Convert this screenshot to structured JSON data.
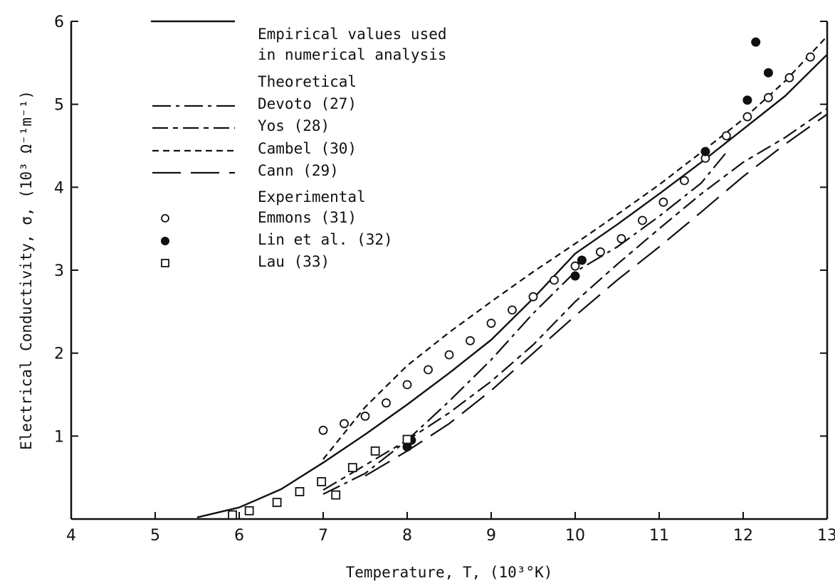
{
  "chart_data": {
    "type": "line",
    "xlabel": "Temperature, T, (10³°K)",
    "ylabel": "Electrical Conductivity, σ, (10³ Ω⁻¹m⁻¹)",
    "xlim": [
      4,
      13
    ],
    "ylim": [
      0,
      6
    ],
    "x_ticks": [
      "4",
      "5",
      "6",
      "7",
      "8",
      "9",
      "10",
      "11",
      "12",
      "13"
    ],
    "y_ticks": [
      "1",
      "2",
      "3",
      "4",
      "5",
      "6"
    ],
    "grid": false,
    "legend": {
      "position": "top-left",
      "entries": [
        "Empirical values used",
        "in numerical analysis",
        "Theoretical",
        "Devoto (27)",
        "Yos (28)",
        "Cambel (30)",
        "Cann (29)",
        "Experimental",
        "Emmons (31)",
        "Lin et al. (32)",
        "Lau (33)"
      ]
    },
    "series": [
      {
        "name": "Empirical values used in numerical analysis",
        "style": "solid",
        "x": [
          5.5,
          6.0,
          6.5,
          7.0,
          7.5,
          8.0,
          8.5,
          9.0,
          9.5,
          10.0,
          10.5,
          11.0,
          11.5,
          12.0,
          12.5,
          13.0
        ],
        "y": [
          0.02,
          0.14,
          0.36,
          0.68,
          1.02,
          1.38,
          1.76,
          2.16,
          2.66,
          3.2,
          3.55,
          3.92,
          4.3,
          4.7,
          5.1,
          5.6
        ]
      },
      {
        "name": "Devoto (27)",
        "style": "dash-dot",
        "x": [
          7.0,
          7.5,
          8.0,
          8.5,
          9.0,
          9.5,
          10.0,
          10.5,
          11.0,
          11.5,
          11.8
        ],
        "y": [
          0.3,
          0.55,
          0.95,
          1.42,
          1.92,
          2.48,
          2.98,
          3.28,
          3.65,
          4.05,
          4.42
        ]
      },
      {
        "name": "Yos (28)",
        "style": "long-dash-dot",
        "x": [
          7.0,
          8.0,
          8.5,
          9.0,
          9.5,
          10.0,
          10.5,
          11.0,
          11.5,
          12.0,
          12.5,
          13.0
        ],
        "y": [
          0.35,
          0.95,
          1.28,
          1.66,
          2.1,
          2.62,
          3.07,
          3.5,
          3.92,
          4.3,
          4.6,
          4.95
        ]
      },
      {
        "name": "Cambel (30)",
        "style": "short-dash",
        "x": [
          7.0,
          7.5,
          8.0,
          8.5,
          9.0,
          9.5,
          10.0,
          10.5,
          11.0,
          11.5,
          12.0,
          12.5,
          13.0
        ],
        "y": [
          0.72,
          1.35,
          1.85,
          2.25,
          2.62,
          2.98,
          3.32,
          3.67,
          4.03,
          4.42,
          4.82,
          5.28,
          5.82
        ]
      },
      {
        "name": "Cann (29)",
        "style": "long-dash",
        "x": [
          7.5,
          8.0,
          8.5,
          9.0,
          9.5,
          10.0,
          10.5,
          11.0,
          11.5,
          12.0,
          12.5,
          13.0
        ],
        "y": [
          0.52,
          0.82,
          1.15,
          1.55,
          2.0,
          2.45,
          2.88,
          3.28,
          3.7,
          4.13,
          4.52,
          4.88
        ]
      },
      {
        "name": "Emmons (31)",
        "marker": "open-circle",
        "x": [
          7.0,
          7.25,
          7.5,
          7.75,
          8.0,
          8.25,
          8.5,
          8.75,
          9.0,
          9.25,
          9.5,
          9.75,
          10.0,
          10.3,
          10.55,
          10.8,
          11.05,
          11.3,
          11.55,
          11.8,
          12.05,
          12.3,
          12.55,
          12.8
        ],
        "y": [
          1.07,
          1.15,
          1.24,
          1.4,
          1.62,
          1.8,
          1.98,
          2.15,
          2.36,
          2.52,
          2.68,
          2.88,
          3.05,
          3.22,
          3.38,
          3.6,
          3.82,
          4.08,
          4.35,
          4.62,
          4.85,
          5.08,
          5.32,
          5.57
        ]
      },
      {
        "name": "Lin et al. (32)",
        "marker": "filled-circle",
        "x": [
          8.0,
          8.05,
          10.0,
          10.08,
          11.55,
          12.05,
          12.15,
          12.3
        ],
        "y": [
          0.87,
          0.95,
          2.93,
          3.12,
          4.43,
          5.05,
          5.75,
          5.38
        ]
      },
      {
        "name": "Lau (33)",
        "marker": "open-square",
        "x": [
          5.92,
          6.12,
          6.45,
          6.72,
          6.98,
          7.15,
          7.35,
          7.62,
          8.0
        ],
        "y": [
          0.05,
          0.1,
          0.2,
          0.33,
          0.45,
          0.29,
          0.62,
          0.82,
          0.96
        ]
      }
    ]
  }
}
